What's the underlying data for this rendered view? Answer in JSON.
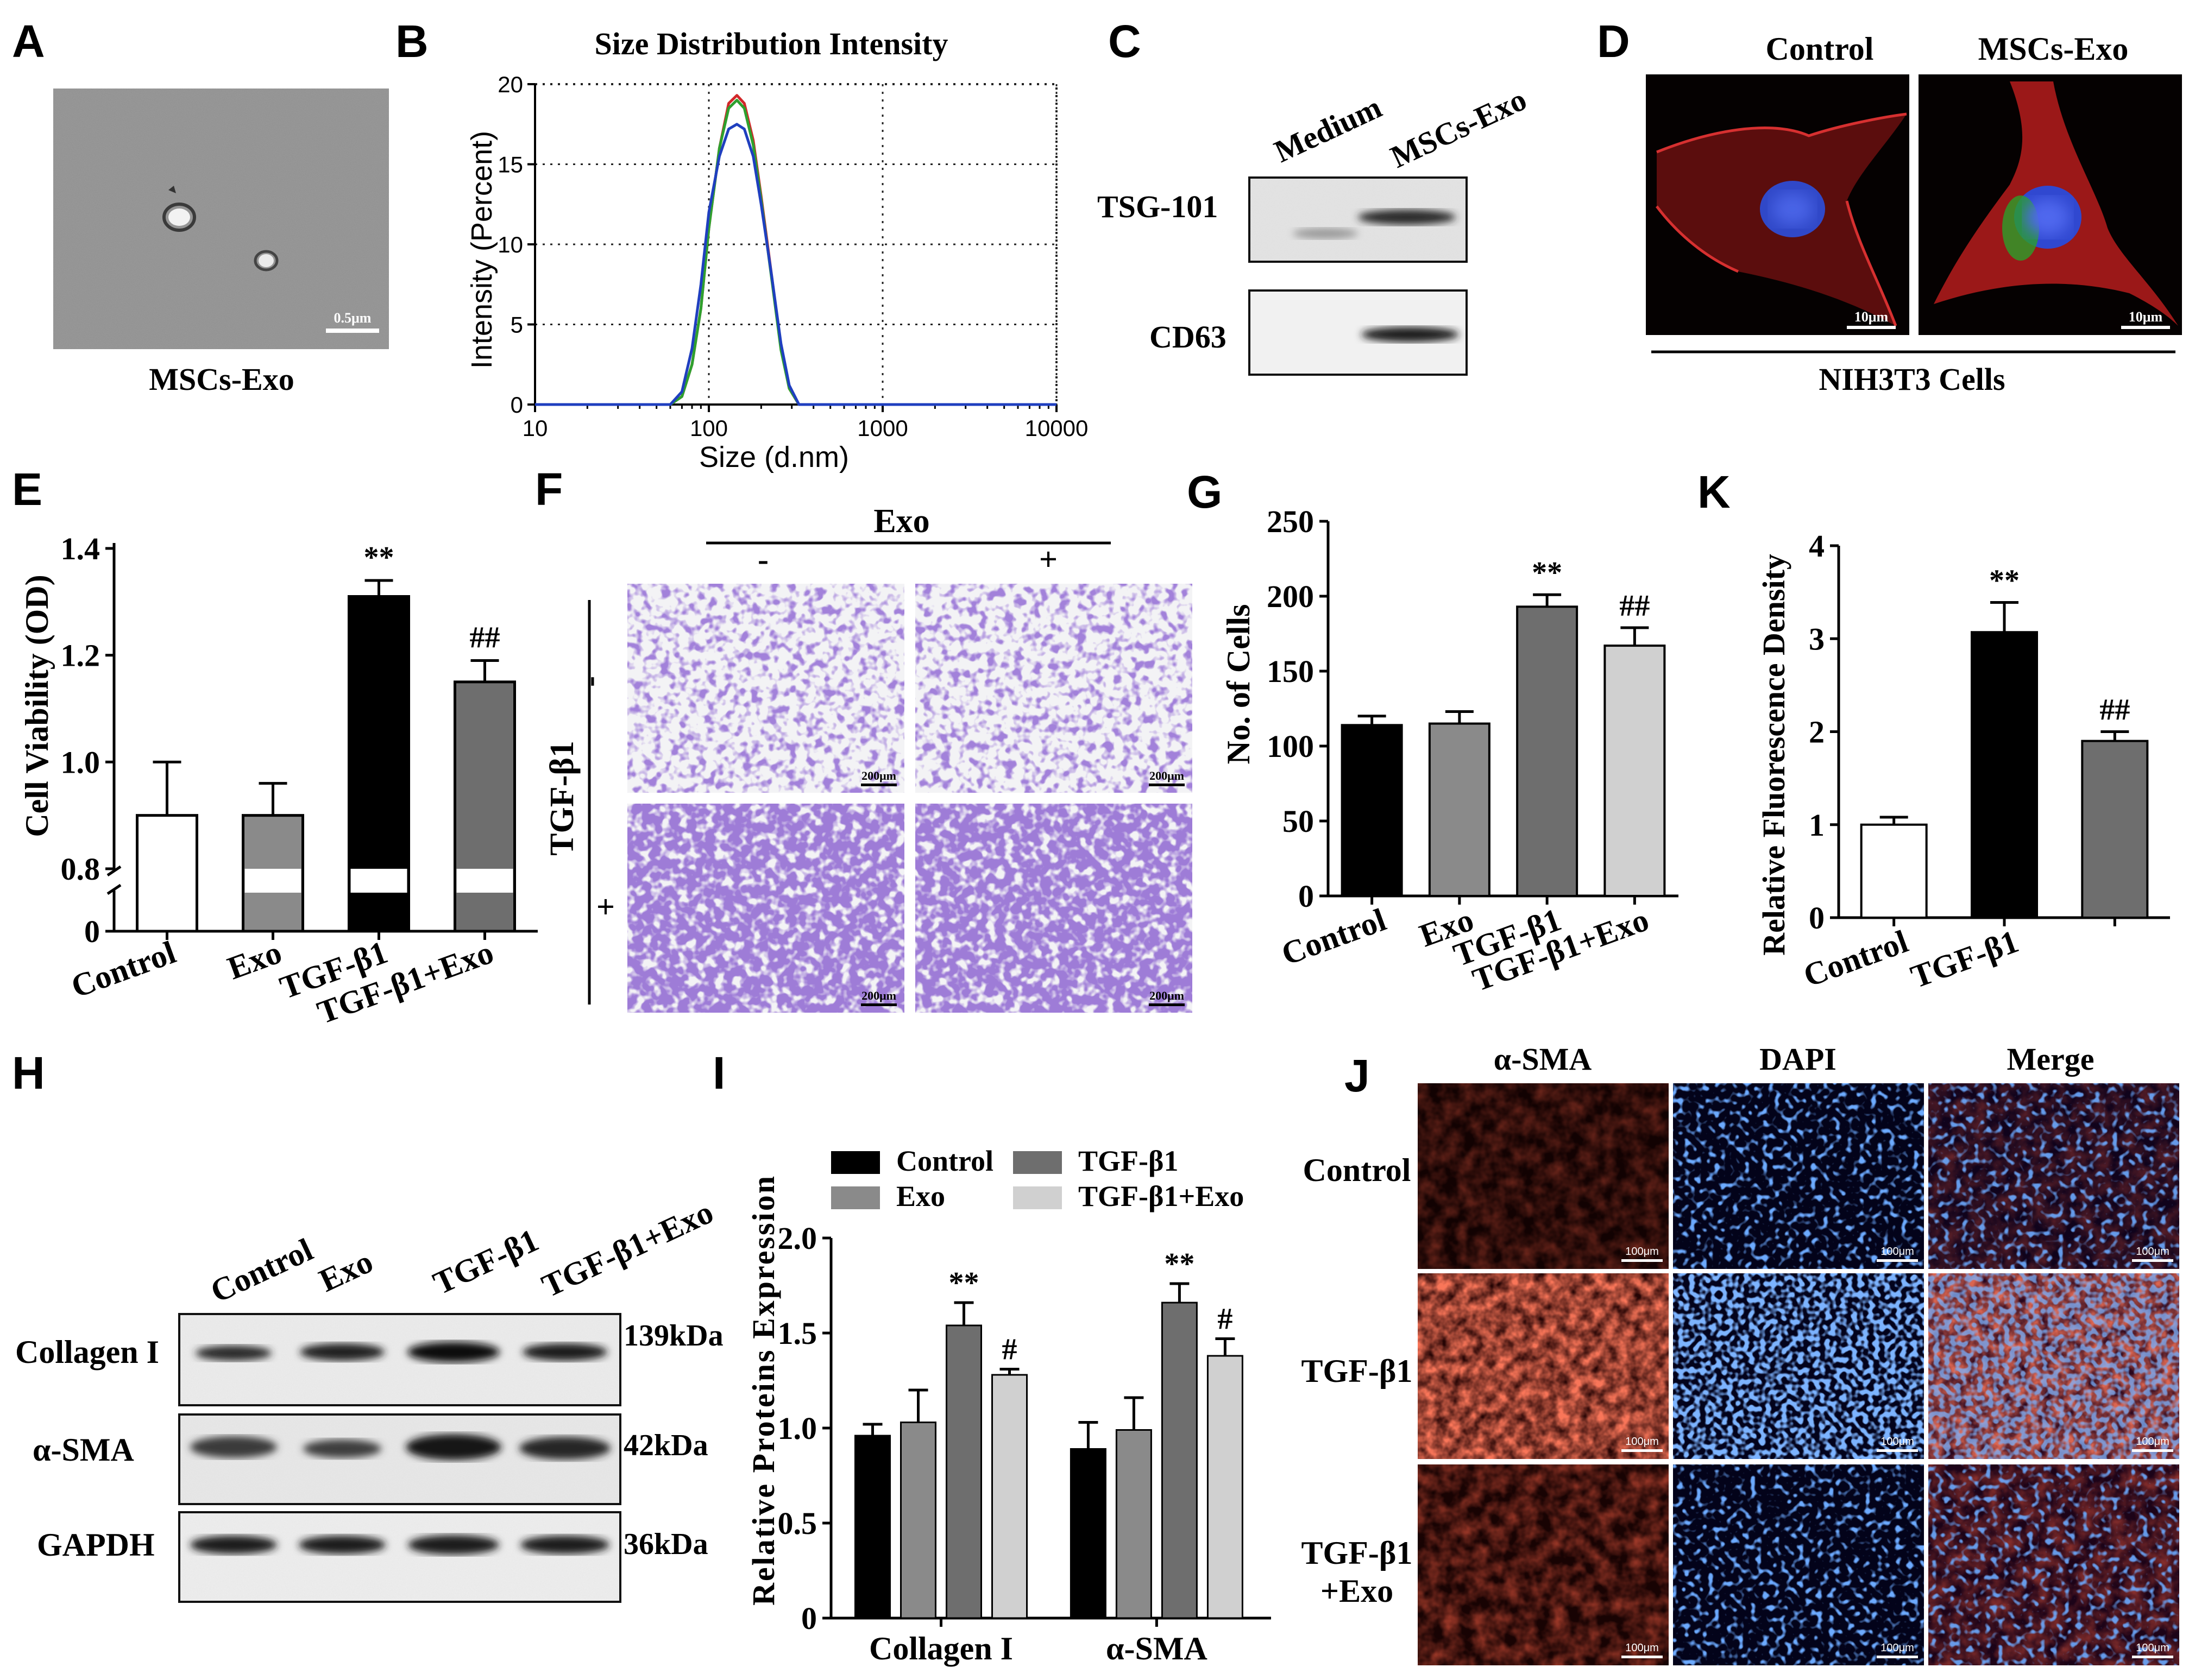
{
  "panels": {
    "A": {
      "letter": "A",
      "caption": "MSCs-Exo",
      "scale_label": "0.5μm"
    },
    "B": {
      "letter": "B"
    },
    "C": {
      "letter": "C",
      "lanes": [
        "Medium",
        "MSCs-Exo"
      ],
      "bands": [
        "TSG-101",
        "CD63"
      ]
    },
    "D": {
      "letter": "D",
      "columns": [
        "Control",
        "MSCs-Exo"
      ],
      "scale_label": "10μm",
      "footer": "NIH3T3 Cells"
    },
    "E": {
      "letter": "E"
    },
    "F": {
      "letter": "F",
      "top_label": "Exo",
      "top_signs": [
        "-",
        "+"
      ],
      "side_label": "TGF-β1",
      "side_signs": [
        "-",
        "+"
      ],
      "scale_label": "200μm"
    },
    "G": {
      "letter": "G"
    },
    "K": {
      "letter": "K"
    },
    "H": {
      "letter": "H",
      "lanes": [
        "Control",
        "Exo",
        "TGF-β1",
        "TGF-β1+Exo"
      ],
      "rows": [
        "Collagen I",
        "α-SMA",
        "GAPDH"
      ],
      "sizes": [
        "139kDa",
        "42kDa",
        "36kDa"
      ]
    },
    "I": {
      "letter": "I"
    },
    "J": {
      "letter": "J",
      "columns": [
        "α-SMA",
        "DAPI",
        "Merge"
      ],
      "rows": [
        "Control",
        "TGF-β1",
        "TGF-β1\n+Exo"
      ],
      "scale_label": "100μm"
    }
  },
  "colors": {
    "red": "#d2282a",
    "green": "#2ea02e",
    "blue": "#1f3fbf",
    "black": "#000000",
    "dark_gray": "#6e6e6e",
    "mid_gray": "#8a8a8a",
    "light_gray": "#d0d0d0"
  },
  "chart_data": [
    {
      "panel": "B",
      "type": "line",
      "title": "Size Distribution Intensity",
      "xlabel": "Size (d.nm)",
      "ylabel": "Intensity (Percent)",
      "xscale": "log",
      "xlim": [
        10,
        10000
      ],
      "ylim": [
        0,
        20
      ],
      "xticks": [
        "10",
        "100",
        "1000",
        "10000"
      ],
      "yticks": [
        "0",
        "5",
        "10",
        "15",
        "20"
      ],
      "grid": true,
      "series": [
        {
          "color": "red",
          "x": [
            10,
            60,
            70,
            80,
            90,
            100,
            115,
            130,
            145,
            160,
            180,
            200,
            230,
            260,
            290,
            330,
            400,
            10000
          ],
          "y": [
            0,
            0,
            0.5,
            2.5,
            6,
            11,
            16,
            18.8,
            19.3,
            18.8,
            16.5,
            13,
            8,
            3.5,
            1,
            0,
            0,
            0
          ]
        },
        {
          "color": "green",
          "x": [
            10,
            60,
            70,
            80,
            90,
            100,
            115,
            130,
            145,
            160,
            180,
            200,
            230,
            260,
            290,
            330,
            400,
            10000
          ],
          "y": [
            0,
            0,
            0.5,
            2.5,
            6,
            11,
            16,
            18.5,
            19,
            18.5,
            16.2,
            12.8,
            7.8,
            3.4,
            1,
            0,
            0,
            0
          ]
        },
        {
          "color": "blue",
          "x": [
            10,
            60,
            70,
            80,
            90,
            100,
            115,
            130,
            145,
            160,
            180,
            200,
            230,
            260,
            290,
            330,
            400,
            10000
          ],
          "y": [
            0,
            0,
            0.8,
            3.5,
            7.5,
            12,
            15.5,
            17.2,
            17.5,
            17.2,
            15.5,
            12.5,
            8,
            3.8,
            1.2,
            0,
            0,
            0
          ]
        }
      ]
    },
    {
      "panel": "E",
      "type": "bar",
      "ylabel": "Cell Viability (OD)",
      "categories": [
        "Control",
        "Exo",
        "TGF-β1",
        "TGF-β1+Exo"
      ],
      "values": [
        0.9,
        0.9,
        1.31,
        1.15
      ],
      "errors": [
        0.1,
        0.06,
        0.03,
        0.04
      ],
      "annotations": [
        "",
        "",
        "**",
        "##"
      ],
      "bar_colors": [
        "white",
        "mid_gray",
        "black",
        "dark_gray"
      ],
      "yticks": [
        "0",
        "0.8",
        "1.0",
        "1.2",
        "1.4"
      ],
      "axis_break": [
        0.1,
        0.8
      ]
    },
    {
      "panel": "G",
      "type": "bar",
      "ylabel": "No. of Cells",
      "categories": [
        "Control",
        "Exo",
        "TGF-β1",
        "TGF-β1+Exo"
      ],
      "values": [
        114,
        115,
        193,
        167
      ],
      "errors": [
        6,
        8,
        8,
        12
      ],
      "annotations": [
        "",
        "",
        "**",
        "##"
      ],
      "bar_colors": [
        "black",
        "mid_gray",
        "dark_gray",
        "light_gray"
      ],
      "ylim": [
        0,
        250
      ],
      "yticks": [
        "0",
        "50",
        "100",
        "150",
        "200",
        "250"
      ]
    },
    {
      "panel": "K",
      "type": "bar",
      "ylabel": "Relative Fluorescence Density",
      "categories": [
        "Control",
        "TGF-β1",
        ""
      ],
      "values": [
        1.0,
        3.07,
        1.9
      ],
      "errors": [
        0.08,
        0.32,
        0.1
      ],
      "annotations": [
        "",
        "**",
        "##"
      ],
      "bar_colors": [
        "white",
        "black",
        "dark_gray"
      ],
      "ylim": [
        0,
        4
      ],
      "yticks": [
        "0",
        "1",
        "2",
        "3",
        "4"
      ]
    },
    {
      "panel": "I",
      "type": "bar",
      "ylabel": "Relative Proteins Expression",
      "categories": [
        "Collagen I",
        "α-SMA"
      ],
      "series": [
        {
          "name": "Control",
          "values": [
            0.96,
            0.89
          ],
          "errors": [
            0.06,
            0.14
          ],
          "annotations": [
            "",
            ""
          ],
          "color": "black"
        },
        {
          "name": "Exo",
          "values": [
            1.03,
            0.99
          ],
          "errors": [
            0.17,
            0.17
          ],
          "annotations": [
            "",
            ""
          ],
          "color": "mid_gray"
        },
        {
          "name": "TGF-β1",
          "values": [
            1.54,
            1.66
          ],
          "errors": [
            0.12,
            0.1
          ],
          "annotations": [
            "**",
            "**"
          ],
          "color": "dark_gray"
        },
        {
          "name": "TGF-β1+Exo",
          "values": [
            1.28,
            1.38
          ],
          "errors": [
            0.03,
            0.09
          ],
          "annotations": [
            "#",
            "#"
          ],
          "color": "light_gray"
        }
      ],
      "ylim": [
        0,
        2.0
      ],
      "yticks": [
        "0",
        "0.5",
        "1.0",
        "1.5",
        "2.0"
      ]
    }
  ]
}
